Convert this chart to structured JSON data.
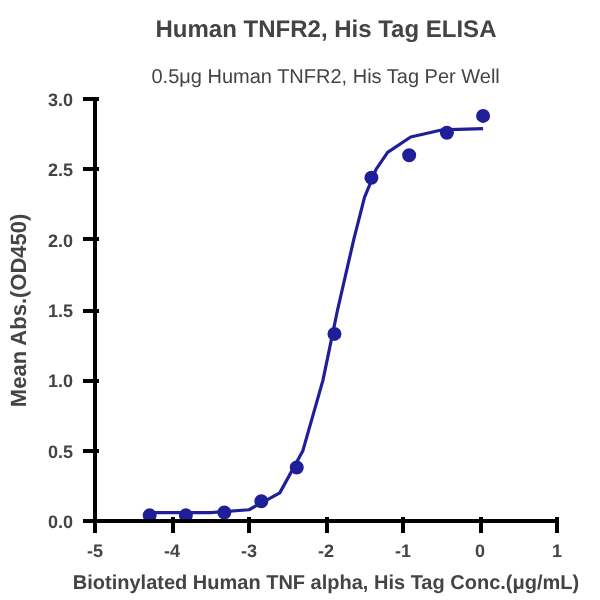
{
  "chart_data": {
    "type": "scatter",
    "title": "Human TNFR2, His Tag ELISA",
    "subtitle": "0.5μg Human TNFR2, His Tag Per Well",
    "xlabel": "Biotinylated Human TNF alpha, His Tag Conc.(μg/mL)",
    "ylabel": "Mean Abs.(OD450)",
    "x": [
      -4.29,
      -3.82,
      -3.32,
      -2.84,
      -2.38,
      -1.89,
      -1.41,
      -0.92,
      -0.43,
      0.04
    ],
    "series": [
      {
        "color": "#1f1f99",
        "marker": "circle",
        "values": [
          0.04,
          0.04,
          0.06,
          0.14,
          0.38,
          1.33,
          2.44,
          2.6,
          2.76,
          2.88
        ]
      },
      {
        "type": "line",
        "color": "#1f1f99",
        "line_style": "solid",
        "x": [
          -4.29,
          -3.5,
          -3.0,
          -2.6,
          -2.3,
          -2.04,
          -1.85,
          -1.64,
          -1.5,
          -1.35,
          -1.2,
          -0.9,
          -0.5,
          0.04
        ],
        "values": [
          0.06,
          0.06,
          0.08,
          0.2,
          0.5,
          1.0,
          1.5,
          2.0,
          2.3,
          2.5,
          2.62,
          2.73,
          2.78,
          2.79
        ]
      }
    ],
    "xlim": [
      -5,
      1
    ],
    "xticks": [
      -5,
      -4,
      -3,
      -2,
      -1,
      0,
      1
    ],
    "ylim": [
      0,
      3
    ],
    "yticks": [
      {
        "value": 0,
        "label": "0.0"
      },
      {
        "value": 0.5,
        "label": "0.5"
      },
      {
        "value": 1,
        "label": "1.0"
      },
      {
        "value": 1.5,
        "label": "1.5"
      },
      {
        "value": 2,
        "label": "2.0"
      },
      {
        "value": 2.5,
        "label": "2.5"
      },
      {
        "value": 3,
        "label": "3.0"
      }
    ],
    "grid": false
  }
}
